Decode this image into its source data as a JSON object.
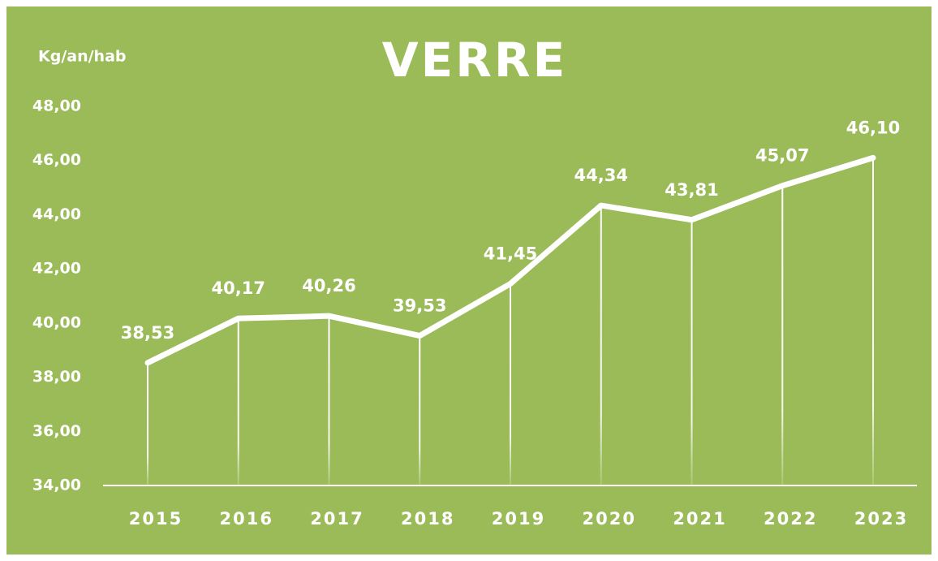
{
  "chart_data": {
    "type": "line",
    "title": "VERRE",
    "y_label": "Kg/an/hab",
    "categories": [
      "2015",
      "2016",
      "2017",
      "2018",
      "2019",
      "2020",
      "2021",
      "2022",
      "2023"
    ],
    "values": [
      38.53,
      40.17,
      40.26,
      39.53,
      41.45,
      44.34,
      43.81,
      45.07,
      46.1
    ],
    "value_labels": [
      "38,53",
      "40,17",
      "40,26",
      "39,53",
      "41,45",
      "44,34",
      "43,81",
      "45,07",
      "46,10"
    ],
    "color": "#ffffff",
    "background": "#9bbb59",
    "drop_lines": true,
    "ylim": [
      34,
      48
    ],
    "yticks": [
      {
        "value": 34,
        "label": "34,00"
      },
      {
        "value": 36,
        "label": "36,00"
      },
      {
        "value": 38,
        "label": "38,00"
      },
      {
        "value": 40,
        "label": "40,00"
      },
      {
        "value": 42,
        "label": "42,00"
      },
      {
        "value": 44,
        "label": "44,00"
      },
      {
        "value": 46,
        "label": "46,00"
      },
      {
        "value": 48,
        "label": "48,00"
      }
    ]
  }
}
